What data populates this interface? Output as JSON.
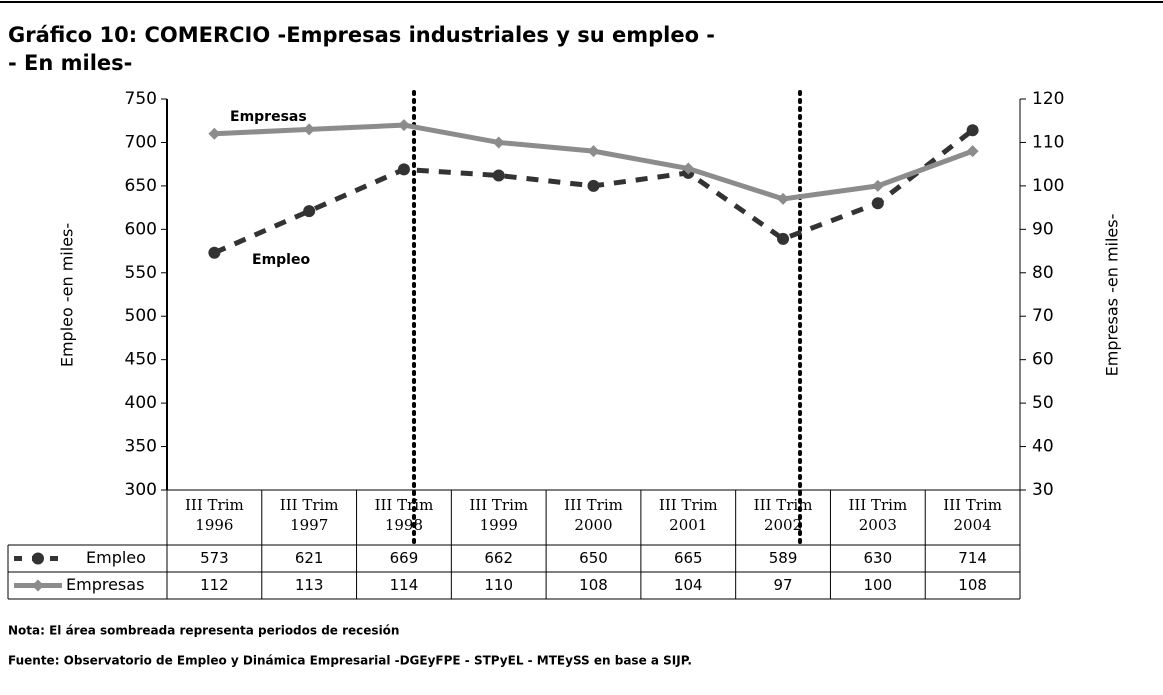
{
  "chart_data": {
    "type": "line",
    "title": "Gráfico 10: COMERCIO -Empresas industriales y su empleo -",
    "subtitle": "- En miles-",
    "categories": [
      [
        "III Trim",
        "1996"
      ],
      [
        "III Trim",
        "1997"
      ],
      [
        "III Trim",
        "1998"
      ],
      [
        "III Trim",
        "1999"
      ],
      [
        "III Trim",
        "2000"
      ],
      [
        "III Trim",
        "2001"
      ],
      [
        "III Trim",
        "2002"
      ],
      [
        "III Trim",
        "2003"
      ],
      [
        "III Trim",
        "2004"
      ]
    ],
    "series": [
      {
        "name": "Empleo",
        "color": "#333333",
        "axis": "y",
        "values": [
          573,
          621,
          669,
          662,
          650,
          665,
          589,
          630,
          714
        ]
      },
      {
        "name": "Empresas",
        "color": "#8c8c8c",
        "axis": "y2",
        "values": [
          112,
          113,
          114,
          110,
          108,
          104,
          97,
          100,
          108
        ]
      }
    ],
    "ylabel": "Empleo -en miles-",
    "y2label": "Empresas -en miles-",
    "ylim": [
      300,
      750
    ],
    "yticks": [
      300,
      350,
      400,
      450,
      500,
      550,
      600,
      650,
      700,
      750
    ],
    "y2lim": [
      30,
      120
    ],
    "y2ticks": [
      30,
      40,
      50,
      60,
      70,
      80,
      90,
      100,
      110,
      120
    ],
    "annotations": [
      "Empresas",
      "Empleo"
    ],
    "notes": [
      "Nota: El área sombreada representa periodos de recesión",
      "Fuente: Observatorio de Empleo y Dinámica Empresarial -DGEyFPE - STPyEL -  MTEySS en base a SIJP."
    ]
  }
}
